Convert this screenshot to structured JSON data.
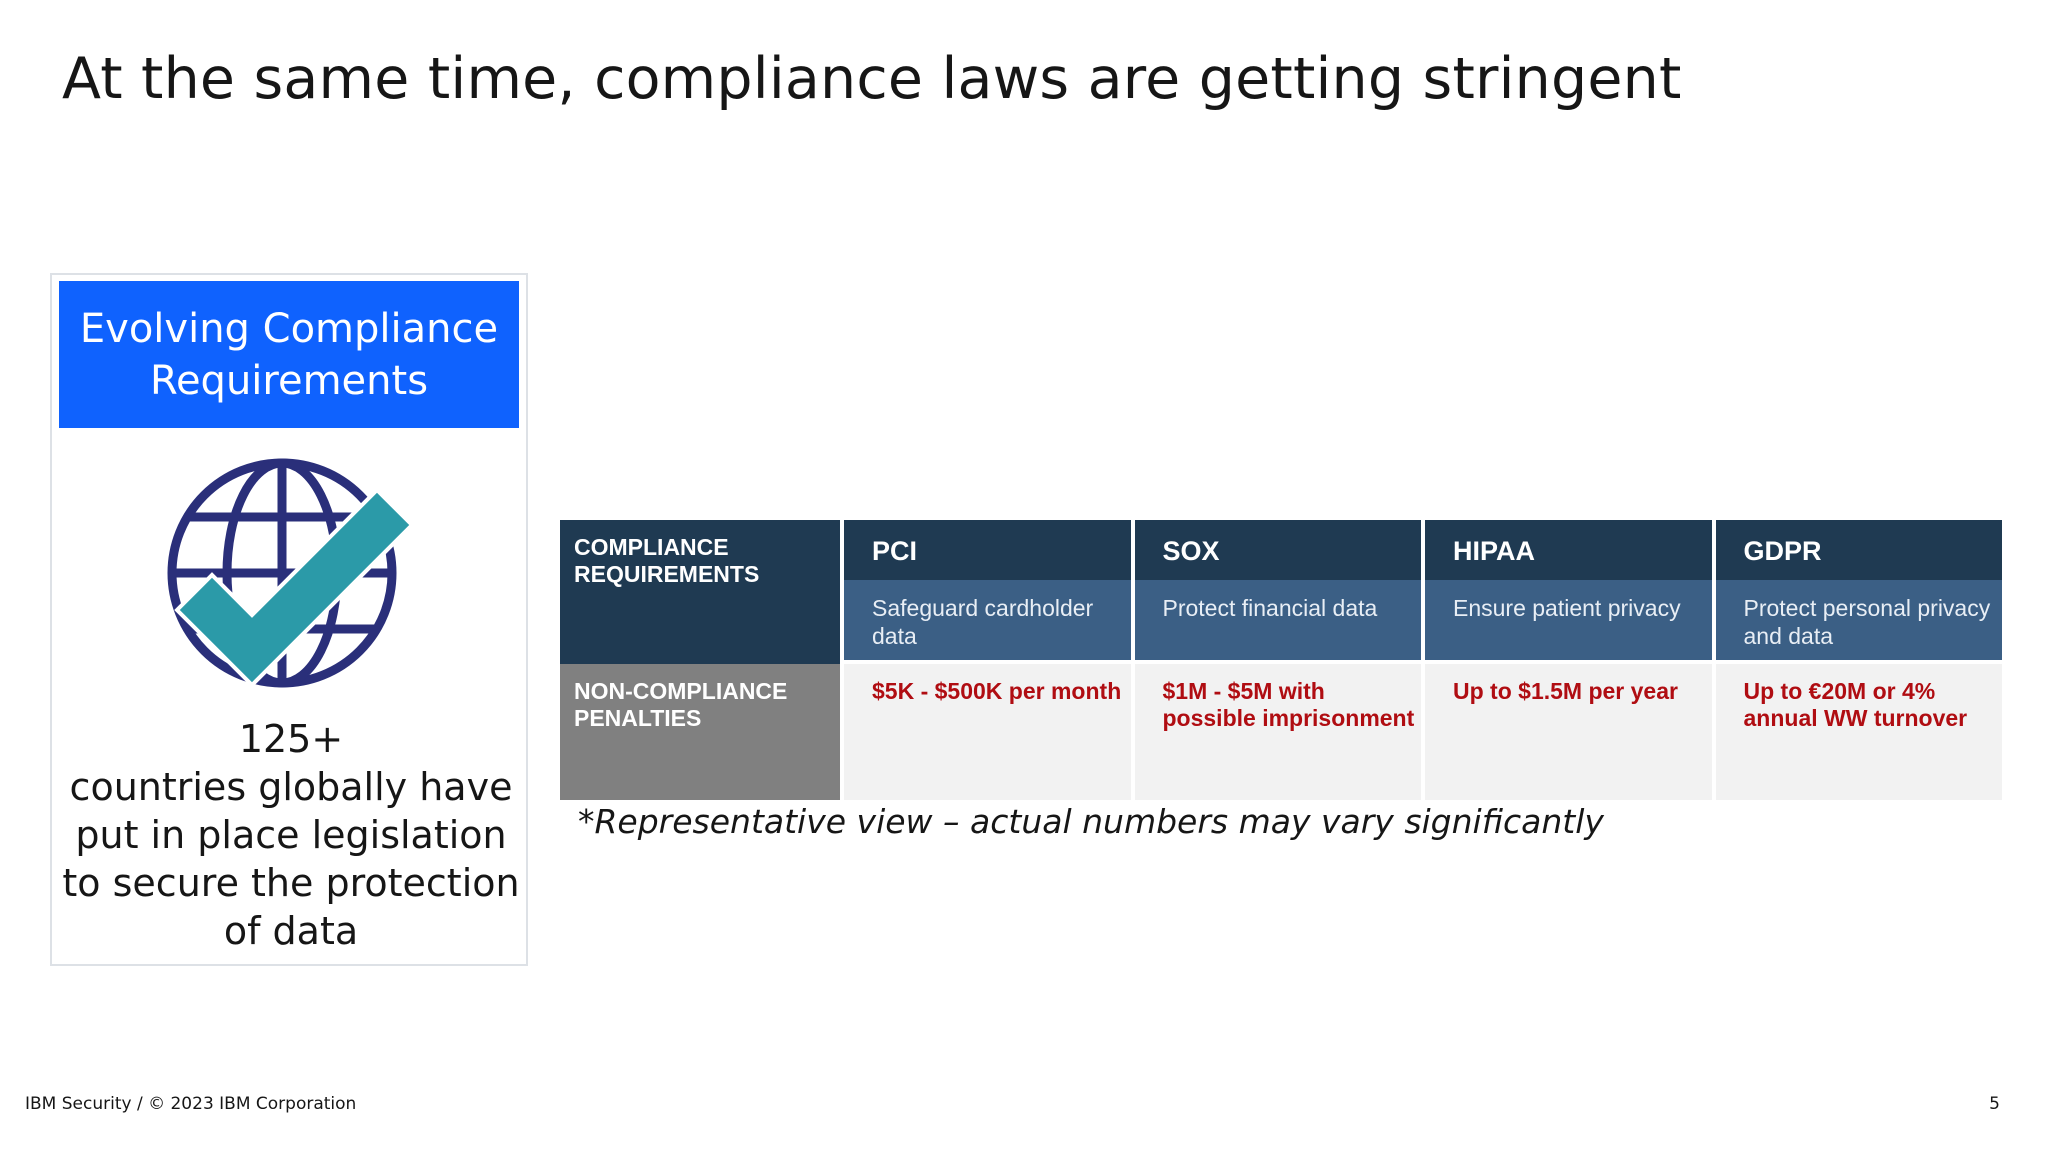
{
  "slide": {
    "title": "At the same time, compliance laws are getting stringent",
    "page_number": "5",
    "footer": "IBM Security / © 2023 IBM Corporation"
  },
  "card": {
    "header": "Evolving Compliance Requirements",
    "icon": "globe-check-icon",
    "stat_number": "125+",
    "stat_text": "countries globally have put in place legislation to secure the protection of data"
  },
  "table": {
    "row1_label": "COMPLIANCE REQUIREMENTS",
    "row2_label": "NON-COMPLIANCE PENALTIES",
    "columns": [
      {
        "name": "PCI",
        "requirement": "Safeguard cardholder data",
        "penalty": "$5K - $500K per month"
      },
      {
        "name": "SOX",
        "requirement": "Protect financial data",
        "penalty": "$1M - $5M with possible imprisonment"
      },
      {
        "name": "HIPAA",
        "requirement": "Ensure patient privacy",
        "penalty": "Up to $1.5M per year"
      },
      {
        "name": "GDPR",
        "requirement": "Protect personal privacy and data",
        "penalty": "Up to €20M or 4% annual WW turnover"
      }
    ]
  },
  "note": "*Representative view – actual numbers may vary significantly",
  "colors": {
    "header_blue": "#0f62fe",
    "table_dark": "#1f3a52",
    "table_mid": "#3b5f85",
    "penalty_red": "#b00d12",
    "icon_navy": "#2a2f7a",
    "icon_teal": "#2b9aa8"
  }
}
